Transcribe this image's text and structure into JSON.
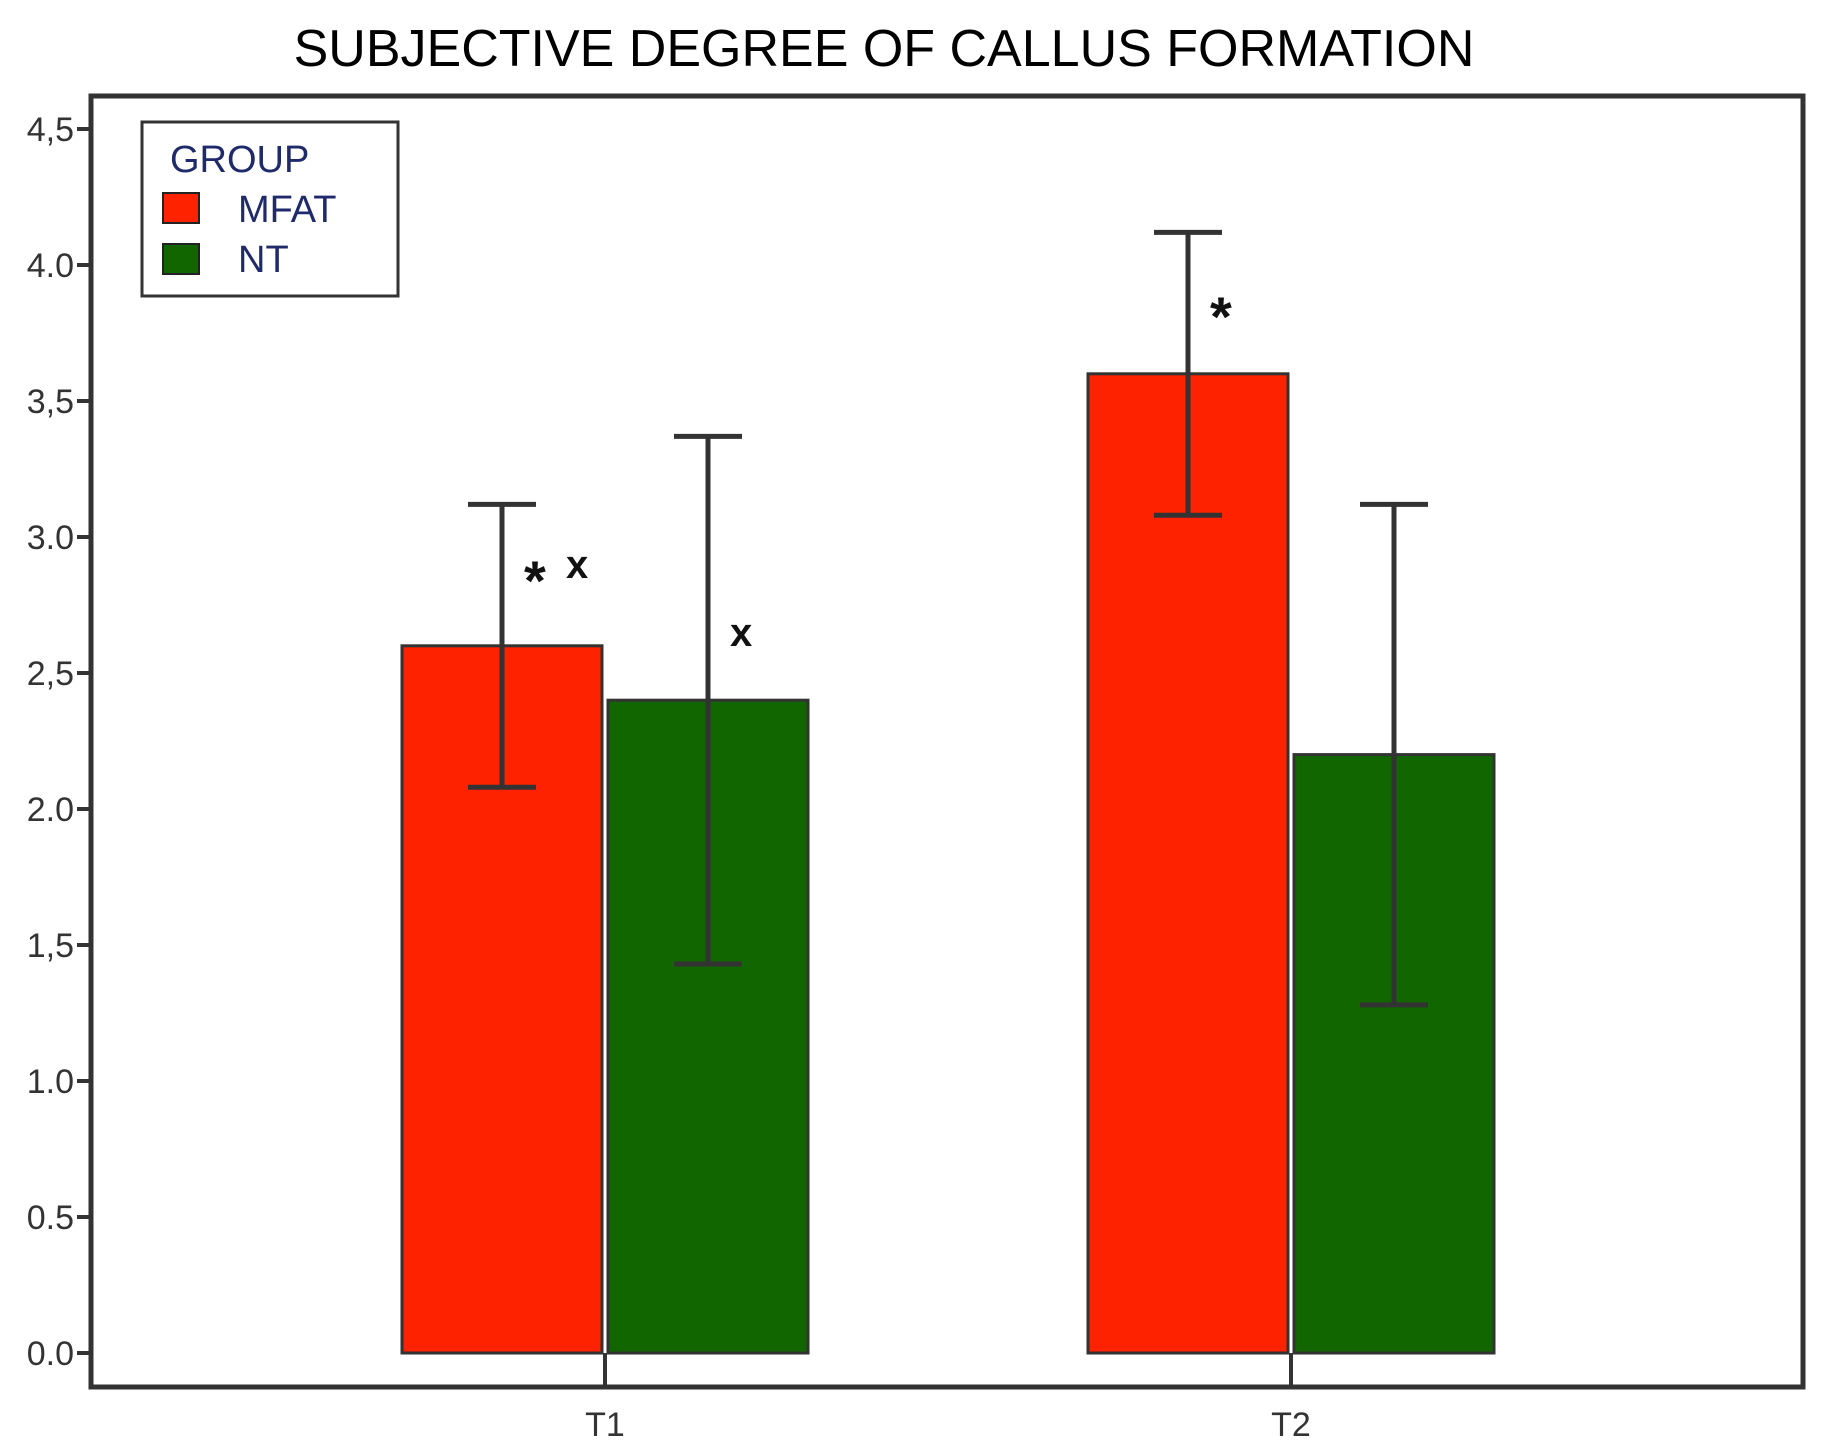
{
  "chart_data": {
    "type": "bar",
    "title": "SUBJECTIVE DEGREE OF CALLUS FORMATION",
    "xlabel": "",
    "ylabel": "",
    "categories": [
      "T1",
      "T2"
    ],
    "ylim": [
      0,
      4.6
    ],
    "yticks": [
      0.0,
      0.5,
      1.0,
      1.5,
      2.0,
      2.5,
      3.0,
      3.5,
      4.0,
      4.5
    ],
    "ytick_labels": [
      "0.0",
      "0.5",
      "1.0",
      "1,5",
      "2.0",
      "2,5",
      "3.0",
      "3,5",
      "4.0",
      "4,5"
    ],
    "grid": false,
    "legend": {
      "title": "GROUP",
      "placement": "top-left"
    },
    "series": [
      {
        "name": "MFAT",
        "color": "#ff2200",
        "values": [
          2.6,
          3.6
        ],
        "error_low": [
          2.08,
          3.08
        ],
        "error_high": [
          3.12,
          4.12
        ],
        "annotations": [
          "* x",
          "*"
        ]
      },
      {
        "name": "NT",
        "color": "#116600",
        "values": [
          2.4,
          2.2
        ],
        "error_low": [
          1.43,
          1.28
        ],
        "error_high": [
          3.37,
          3.12
        ],
        "annotations": [
          "x",
          ""
        ]
      }
    ]
  }
}
